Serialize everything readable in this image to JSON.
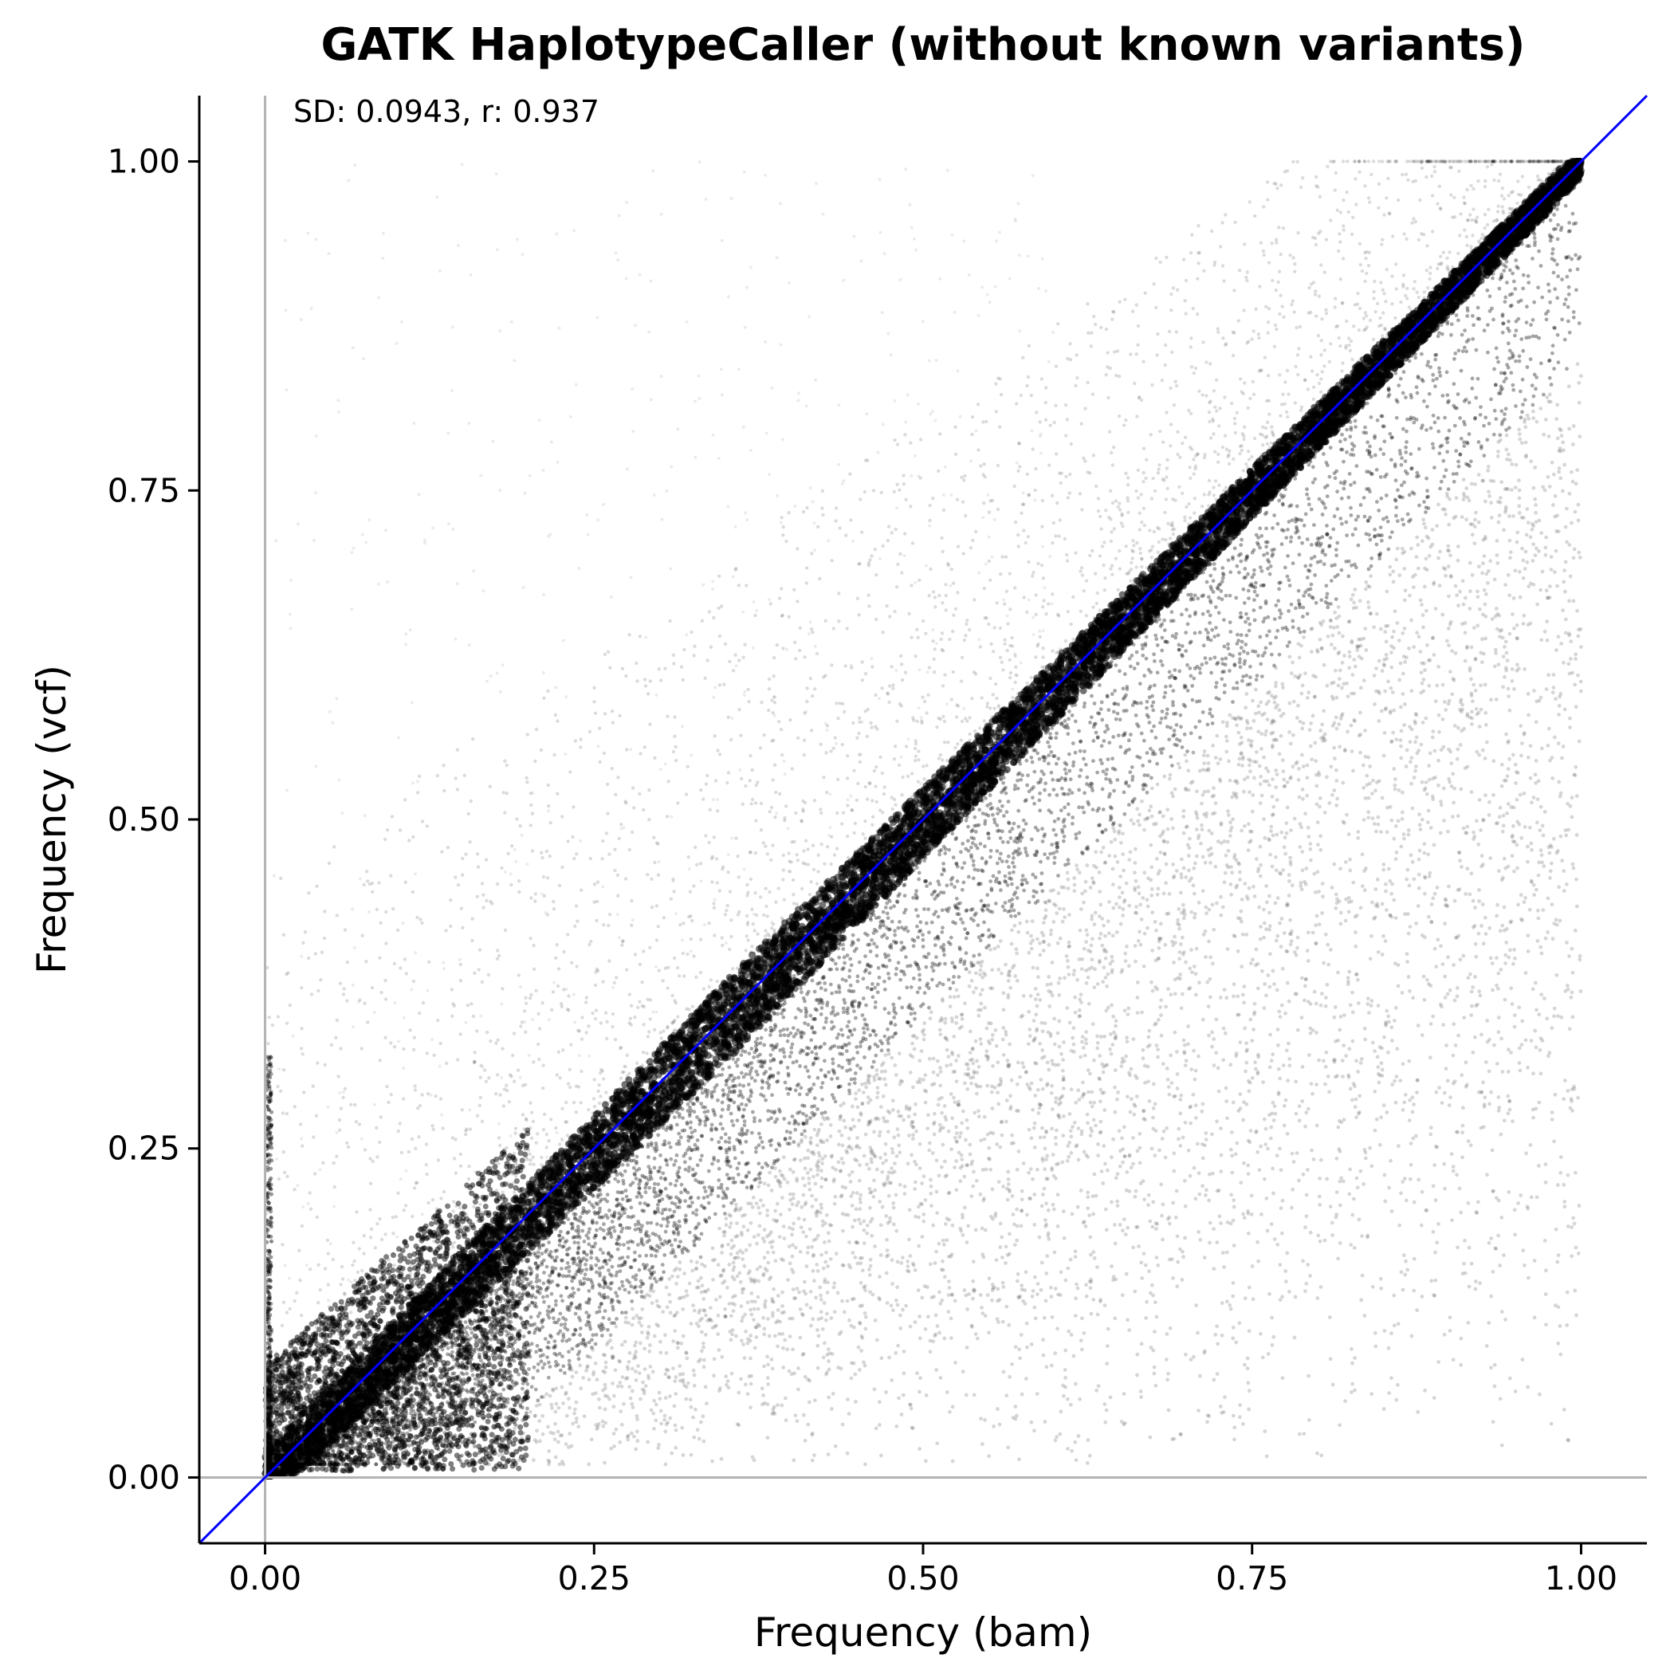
{
  "chart_data": {
    "type": "scatter",
    "title": "GATK HaplotypeCaller (without known variants)",
    "xlabel": "Frequency (bam)",
    "ylabel": "Frequency (vcf)",
    "annotation": "SD: 0.0943, r: 0.937",
    "xlim": [
      -0.05,
      1.05
    ],
    "ylim": [
      -0.05,
      1.05
    ],
    "xticks": [
      "0.00",
      "0.25",
      "0.50",
      "0.75",
      "1.00"
    ],
    "yticks": [
      "0.00",
      "0.25",
      "0.50",
      "0.75",
      "1.00"
    ],
    "xtick_values": [
      0,
      0.25,
      0.5,
      0.75,
      1.0
    ],
    "ytick_values": [
      0,
      0.25,
      0.5,
      0.75,
      1.0
    ],
    "reference_lines": [
      {
        "kind": "identity",
        "slope": 1,
        "intercept": 0,
        "color": "#0000ff"
      },
      {
        "kind": "vertical",
        "x": 0,
        "color": "#b3b3b3"
      },
      {
        "kind": "horizontal",
        "y": 0,
        "color": "#b3b3b3"
      }
    ],
    "point_color": "#000000",
    "grid": false,
    "series": [
      {
        "points_summary": "dense cloud concentrated along y = x, spreading below the diagonal toward x = 1",
        "density_bands": [
          {
            "x": 0.05,
            "y_low": 0.005,
            "y_core": 0.05,
            "y_high": 0.09
          },
          {
            "x": 0.25,
            "y_low": 0.02,
            "y_core": 0.25,
            "y_high": 0.4
          },
          {
            "x": 0.5,
            "y_low": 0.02,
            "y_core": 0.5,
            "y_high": 0.65
          },
          {
            "x": 0.75,
            "y_low": 0.03,
            "y_core": 0.75,
            "y_high": 0.88
          },
          {
            "x": 1.0,
            "y_low": 0.05,
            "y_core": 1.0,
            "y_high": 1.0
          }
        ]
      }
    ]
  }
}
